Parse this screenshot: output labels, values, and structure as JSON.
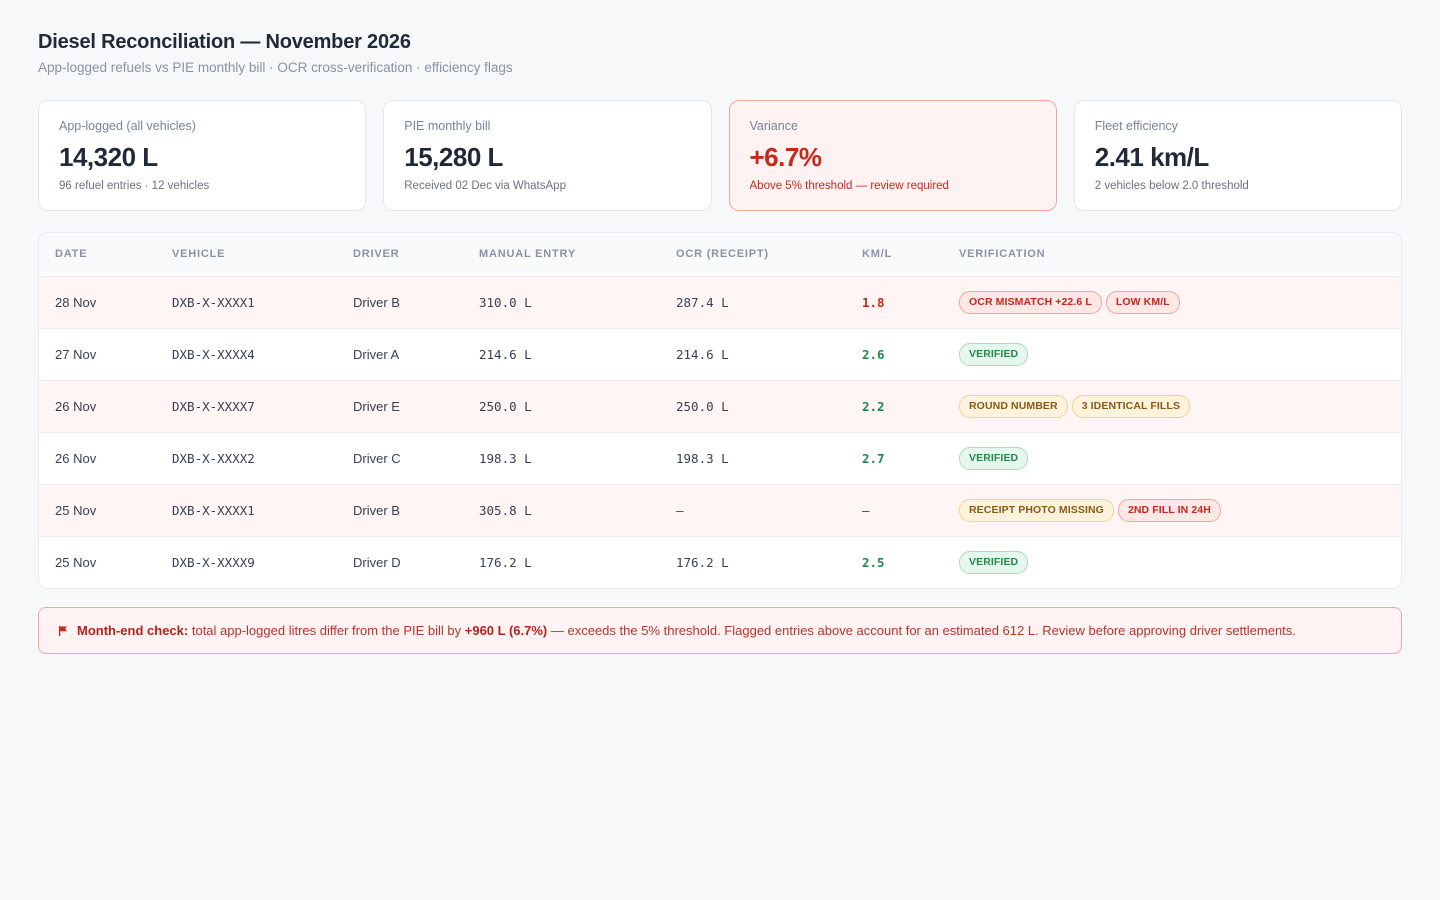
{
  "header": {
    "title": "Diesel Reconciliation — November 2026",
    "subtitle": "App-logged refuels vs PIE monthly bill · OCR cross-verification · efficiency flags"
  },
  "cards": [
    {
      "label": "App-logged (all vehicles)",
      "value": "14,320 L",
      "note": "96 refuel entries · 12 vehicles"
    },
    {
      "label": "PIE monthly bill",
      "value": "15,280 L",
      "note": "Received 02 Dec via WhatsApp"
    },
    {
      "label": "Variance",
      "value": "+6.7%",
      "note": "Above 5% threshold — review required"
    },
    {
      "label": "Fleet efficiency",
      "value": "2.41 km/L",
      "note": "2 vehicles below 2.0 threshold"
    }
  ],
  "table": {
    "columns": [
      "DATE",
      "VEHICLE",
      "DRIVER",
      "MANUAL ENTRY",
      "OCR (RECEIPT)",
      "KM/L",
      "VERIFICATION"
    ],
    "rows": [
      {
        "date": "28 Nov",
        "vehicle": "DXB-X-XXXX1",
        "driver": "Driver B",
        "manual": "310.0 L",
        "ocr": "287.4 L",
        "kml": "1.8",
        "badges": [
          "OCR MISMATCH +22.6 L",
          "LOW KM/L"
        ]
      },
      {
        "date": "27 Nov",
        "vehicle": "DXB-X-XXXX4",
        "driver": "Driver A",
        "manual": "214.6 L",
        "ocr": "214.6 L",
        "kml": "2.6",
        "badges": [
          "VERIFIED"
        ]
      },
      {
        "date": "26 Nov",
        "vehicle": "DXB-X-XXXX7",
        "driver": "Driver E",
        "manual": "250.0 L",
        "ocr": "250.0 L",
        "kml": "2.2",
        "badges": [
          "ROUND NUMBER",
          "3 IDENTICAL FILLS"
        ]
      },
      {
        "date": "26 Nov",
        "vehicle": "DXB-X-XXXX2",
        "driver": "Driver C",
        "manual": "198.3 L",
        "ocr": "198.3 L",
        "kml": "2.7",
        "badges": [
          "VERIFIED"
        ]
      },
      {
        "date": "25 Nov",
        "vehicle": "DXB-X-XXXX1",
        "driver": "Driver B",
        "manual": "305.8 L",
        "ocr": "—",
        "kml": "—",
        "badges": [
          "RECEIPT PHOTO MISSING",
          "2ND FILL IN 24H"
        ]
      },
      {
        "date": "25 Nov",
        "vehicle": "DXB-X-XXXX9",
        "driver": "Driver D",
        "manual": "176.2 L",
        "ocr": "176.2 L",
        "kml": "2.5",
        "badges": [
          "VERIFIED"
        ]
      }
    ]
  },
  "banner": {
    "icon": "flag-icon",
    "lead": "Month-end check:",
    "text_a": " total app-logged litres differ from the PIE bill by ",
    "highlight": "+960 L (6.7%)",
    "text_b": " — exceeds the 5% threshold. Flagged entries above account for an estimated 612 L. Review before approving driver settlements."
  },
  "colors": {
    "alert": "#c9271b",
    "good": "#1f8a4c",
    "amber": "#8a5a12",
    "background": "#f7f8fa"
  }
}
